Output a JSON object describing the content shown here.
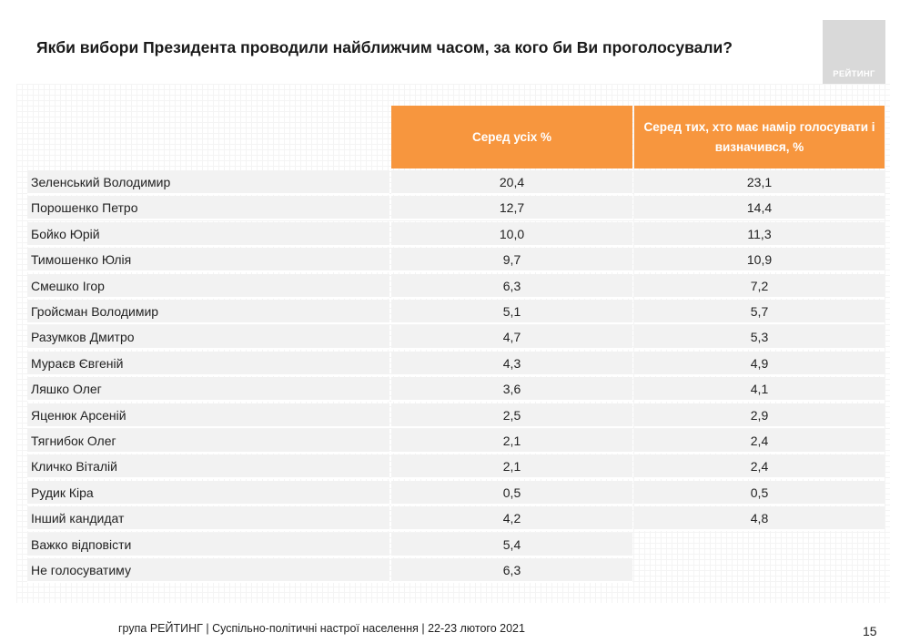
{
  "title": "Якби вибори Президента проводили найближчим часом, за кого би Ви проголосували?",
  "logo_text": "РЕЙТИНГ",
  "footer": "група РЕЙТИНГ | Суспільно-політичні настрої населення  | 22-23 лютого 2021",
  "page_number": "15",
  "colors": {
    "header": "#f7963e",
    "row": "#f2f2f2",
    "logo": "#d9d9d9"
  },
  "chart_data": {
    "type": "table",
    "columns": [
      "Серед усіх %",
      "Серед тих, хто має намір голосувати і визначився, %"
    ],
    "rows": [
      {
        "name": "Зеленський Володимир",
        "all": "20,4",
        "decided": "23,1"
      },
      {
        "name": "Порошенко Петро",
        "all": "12,7",
        "decided": "14,4"
      },
      {
        "name": "Бойко Юрій",
        "all": "10,0",
        "decided": "11,3"
      },
      {
        "name": "Тимошенко Юлія",
        "all": "9,7",
        "decided": "10,9"
      },
      {
        "name": "Смешко Ігор",
        "all": "6,3",
        "decided": "7,2"
      },
      {
        "name": "Гройсман Володимир",
        "all": "5,1",
        "decided": "5,7"
      },
      {
        "name": "Разумков Дмитро",
        "all": "4,7",
        "decided": "5,3"
      },
      {
        "name": "Мураєв Євгеній",
        "all": "4,3",
        "decided": "4,9"
      },
      {
        "name": "Ляшко Олег",
        "all": "3,6",
        "decided": "4,1"
      },
      {
        "name": "Яценюк Арсеній",
        "all": "2,5",
        "decided": "2,9"
      },
      {
        "name": "Тягнибок Олег",
        "all": "2,1",
        "decided": "2,4"
      },
      {
        "name": "Кличко Віталій",
        "all": "2,1",
        "decided": "2,4"
      },
      {
        "name": "Рудик Кіра",
        "all": "0,5",
        "decided": "0,5"
      },
      {
        "name": "Інший кандидат",
        "all": "4,2",
        "decided": "4,8"
      },
      {
        "name": "Важко відповісти",
        "all": "5,4",
        "decided": null
      },
      {
        "name": "Не голосуватиму",
        "all": "6,3",
        "decided": null
      }
    ]
  }
}
